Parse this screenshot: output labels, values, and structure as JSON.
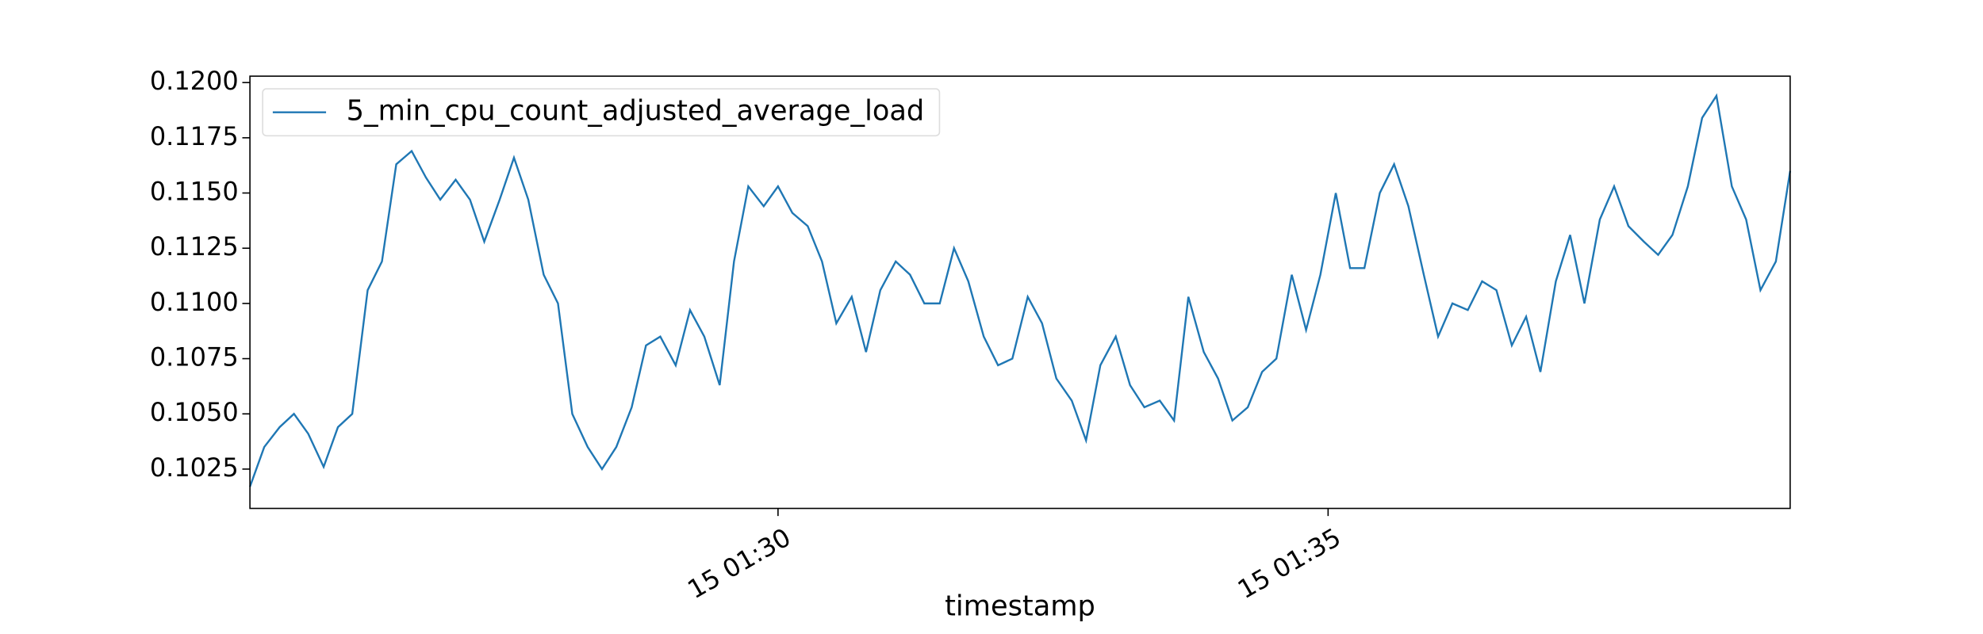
{
  "chart_data": {
    "type": "line",
    "x_label": "timestamp",
    "x": [
      25.2,
      25.33,
      25.47,
      25.6,
      25.73,
      25.87,
      26.0,
      26.13,
      26.27,
      26.4,
      26.53,
      26.67,
      26.8,
      26.93,
      27.07,
      27.2,
      27.33,
      27.47,
      27.6,
      27.73,
      27.87,
      28.0,
      28.13,
      28.27,
      28.4,
      28.53,
      28.67,
      28.8,
      28.93,
      29.07,
      29.2,
      29.33,
      29.47,
      29.6,
      29.73,
      29.87,
      30.0,
      30.13,
      30.27,
      30.4,
      30.53,
      30.67,
      30.8,
      30.93,
      31.07,
      31.2,
      31.33,
      31.47,
      31.6,
      31.73,
      31.87,
      32.0,
      32.13,
      32.27,
      32.4,
      32.53,
      32.67,
      32.8,
      32.93,
      33.07,
      33.2,
      33.33,
      33.47,
      33.6,
      33.73,
      33.87,
      34.0,
      34.13,
      34.27,
      34.4,
      34.53,
      34.67,
      34.8,
      34.93,
      35.07,
      35.2,
      35.33,
      35.47,
      35.6,
      35.73,
      35.87,
      36.0,
      36.13,
      36.27,
      36.4,
      36.53,
      36.67,
      36.8,
      36.93,
      37.07,
      37.2,
      37.33,
      37.47,
      37.6,
      37.73,
      37.87,
      38.0,
      38.13,
      38.27,
      38.4,
      38.53,
      38.67,
      38.8,
      38.93,
      39.07,
      39.2
    ],
    "series": [
      {
        "name": "5_min_cpu_count_adjusted_average_load",
        "color": "#1f77b4",
        "values": [
          0.1017,
          0.1035,
          0.1044,
          0.105,
          0.1041,
          0.1026,
          0.1044,
          0.105,
          0.1106,
          0.1119,
          0.1163,
          0.1169,
          0.1157,
          0.1147,
          0.1156,
          0.1147,
          0.1128,
          0.1147,
          0.1166,
          0.1147,
          0.1113,
          0.11,
          0.105,
          0.1035,
          0.1025,
          0.1035,
          0.1053,
          0.1081,
          0.1085,
          0.1072,
          0.1097,
          0.1085,
          0.1063,
          0.1119,
          0.1153,
          0.1144,
          0.1153,
          0.1141,
          0.1135,
          0.1119,
          0.1091,
          0.1103,
          0.1078,
          0.1106,
          0.1119,
          0.1113,
          0.11,
          0.11,
          0.1125,
          0.111,
          0.1085,
          0.1072,
          0.1075,
          0.1103,
          0.1091,
          0.1066,
          0.1056,
          0.1038,
          0.1072,
          0.1085,
          0.1063,
          0.1053,
          0.1056,
          0.1047,
          0.1103,
          0.1078,
          0.1066,
          0.1047,
          0.1053,
          0.1069,
          0.1075,
          0.1113,
          0.1088,
          0.1113,
          0.115,
          0.1116,
          0.1116,
          0.115,
          0.1163,
          0.1144,
          0.1113,
          0.1085,
          0.11,
          0.1097,
          0.111,
          0.1106,
          0.1081,
          0.1094,
          0.1069,
          0.111,
          0.1131,
          0.11,
          0.1138,
          0.1153,
          0.1135,
          0.1128,
          0.1122,
          0.1131,
          0.1153,
          0.1184,
          0.1194,
          0.1153,
          0.1138,
          0.1106,
          0.1119,
          0.116
        ]
      }
    ],
    "xlim": [
      25.2,
      39.2
    ],
    "xticks": [
      {
        "value": 30,
        "label": "15 01:30"
      },
      {
        "value": 35,
        "label": "15 01:35"
      }
    ],
    "ylim": [
      0.10072,
      0.12029
    ],
    "yticks": [
      0.1025,
      {
        "value": 0.105,
        "label": "0.1050"
      },
      0.1075,
      {
        "value": 0.11,
        "label": "0.1100"
      },
      0.1125,
      {
        "value": 0.115,
        "label": "0.1150"
      },
      0.1175,
      {
        "value": 0.12,
        "label": "0.1200"
      }
    ],
    "grid": false,
    "legend": "upper left"
  }
}
